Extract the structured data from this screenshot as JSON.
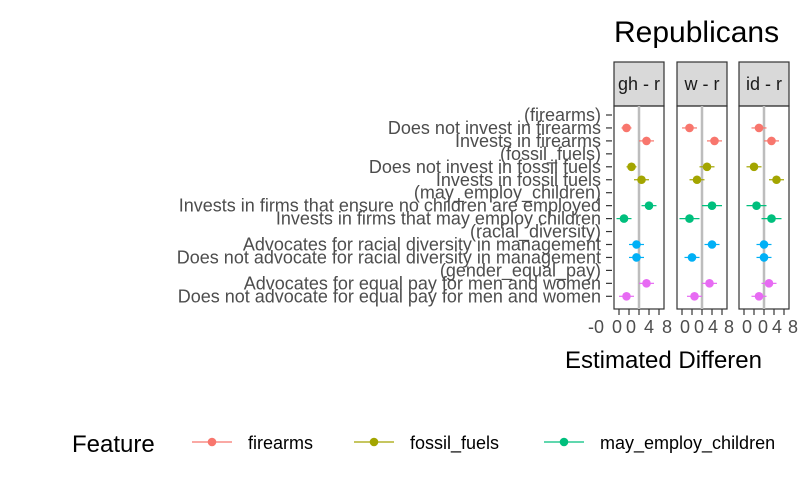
{
  "chart_data": {
    "type": "scatter",
    "title": "Republicans",
    "xlabel": "Estimated Differen",
    "x_tick_labels": [
      "-0",
      "0",
      "0",
      "4",
      "8"
    ],
    "panels": [
      {
        "strip": "gh - r"
      },
      {
        "strip": "w - r"
      },
      {
        "strip": "id - r"
      }
    ],
    "y_labels": [
      "(firearms)",
      "Does not invest in firearms",
      "Invests in firearms",
      "(fossil_fuels)",
      "Does not invest in fossil fuels",
      "Invests in fossil fuels",
      "(may_employ_children)",
      "Invests in firms that ensure no children are employed",
      "Invests in firms that may employ children",
      "(racial_diversity)",
      "Advocates for racial diversity in management",
      "Does not advocate for racial diversity in management",
      "(gender_equal_pay)",
      "Advocates for equal pay for men and women",
      "Does not advocate for equal pay for men and women"
    ],
    "xlim": [
      -0.1,
      0.1
    ],
    "reference_line": 0,
    "series": [
      {
        "name": "firearms",
        "color": "#F8766D",
        "points": [
          {
            "level": 1,
            "est": [
              -0.05,
              -0.05,
              -0.02
            ],
            "lo": [
              -0.07,
              -0.08,
              -0.05
            ],
            "hi": [
              -0.03,
              -0.02,
              0.01
            ]
          },
          {
            "level": 2,
            "est": [
              0.03,
              0.05,
              0.03
            ],
            "lo": [
              0.0,
              0.02,
              0.0
            ],
            "hi": [
              0.06,
              0.08,
              0.06
            ]
          }
        ]
      },
      {
        "name": "fossil_fuels",
        "color": "#A3A500",
        "points": [
          {
            "level": 4,
            "est": [
              -0.03,
              0.02,
              -0.04
            ],
            "lo": [
              -0.05,
              -0.01,
              -0.07
            ],
            "hi": [
              -0.01,
              0.05,
              -0.01
            ]
          },
          {
            "level": 5,
            "est": [
              0.01,
              -0.02,
              0.05
            ],
            "lo": [
              -0.02,
              -0.05,
              0.02
            ],
            "hi": [
              0.04,
              0.01,
              0.08
            ]
          }
        ]
      },
      {
        "name": "may_employ_children",
        "color": "#00BF7D",
        "points": [
          {
            "level": 7,
            "est": [
              0.04,
              0.04,
              -0.03
            ],
            "lo": [
              0.01,
              0.0,
              -0.07
            ],
            "hi": [
              0.07,
              0.08,
              0.01
            ]
          },
          {
            "level": 8,
            "est": [
              -0.06,
              -0.05,
              0.03
            ],
            "lo": [
              -0.09,
              -0.09,
              -0.01
            ],
            "hi": [
              -0.03,
              -0.01,
              0.07
            ]
          }
        ]
      },
      {
        "name": "racial_diversity",
        "color": "#00B0F6",
        "points": [
          {
            "level": 10,
            "est": [
              -0.01,
              0.04,
              0.0
            ],
            "lo": [
              -0.04,
              0.01,
              -0.03
            ],
            "hi": [
              0.02,
              0.07,
              0.03
            ]
          },
          {
            "level": 11,
            "est": [
              -0.01,
              -0.04,
              0.0
            ],
            "lo": [
              -0.04,
              -0.07,
              -0.03
            ],
            "hi": [
              0.02,
              -0.01,
              0.03
            ]
          }
        ]
      },
      {
        "name": "gender_equal_pay",
        "color": "#E76BF3",
        "points": [
          {
            "level": 13,
            "est": [
              0.03,
              0.03,
              0.02
            ],
            "lo": [
              0.0,
              0.0,
              -0.01
            ],
            "hi": [
              0.06,
              0.06,
              0.05
            ]
          },
          {
            "level": 14,
            "est": [
              -0.05,
              -0.03,
              -0.02
            ],
            "lo": [
              -0.08,
              -0.06,
              -0.05
            ],
            "hi": [
              -0.02,
              0.0,
              0.01
            ]
          }
        ]
      }
    ],
    "legend": {
      "title": "Feature",
      "position": "bottom"
    }
  }
}
